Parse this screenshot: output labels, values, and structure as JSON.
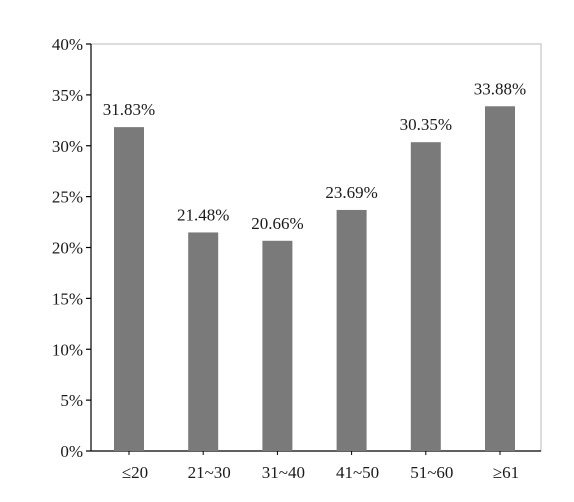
{
  "chart_data": {
    "type": "bar",
    "categories": [
      "≤20",
      "21~30",
      "31~40",
      "41~50",
      "51~60",
      "≥61"
    ],
    "values": [
      31.83,
      21.48,
      20.66,
      23.69,
      30.35,
      33.88
    ],
    "data_labels": [
      "31.83%",
      "21.48%",
      "20.66%",
      "23.69%",
      "30.35%",
      "33.88%"
    ],
    "y_ticks": [
      0,
      5,
      10,
      15,
      20,
      25,
      30,
      35,
      40
    ],
    "y_tick_labels": [
      "0%",
      "5%",
      "10%",
      "15%",
      "20%",
      "25%",
      "30%",
      "35%",
      "40%"
    ],
    "ylim": [
      0,
      40
    ],
    "title": "",
    "xlabel": "",
    "ylabel": "",
    "grid": false,
    "legend": "none",
    "bar_color": "#7a7a7a",
    "frame_color": "#b8b8b8",
    "axis_color": "#000000"
  }
}
